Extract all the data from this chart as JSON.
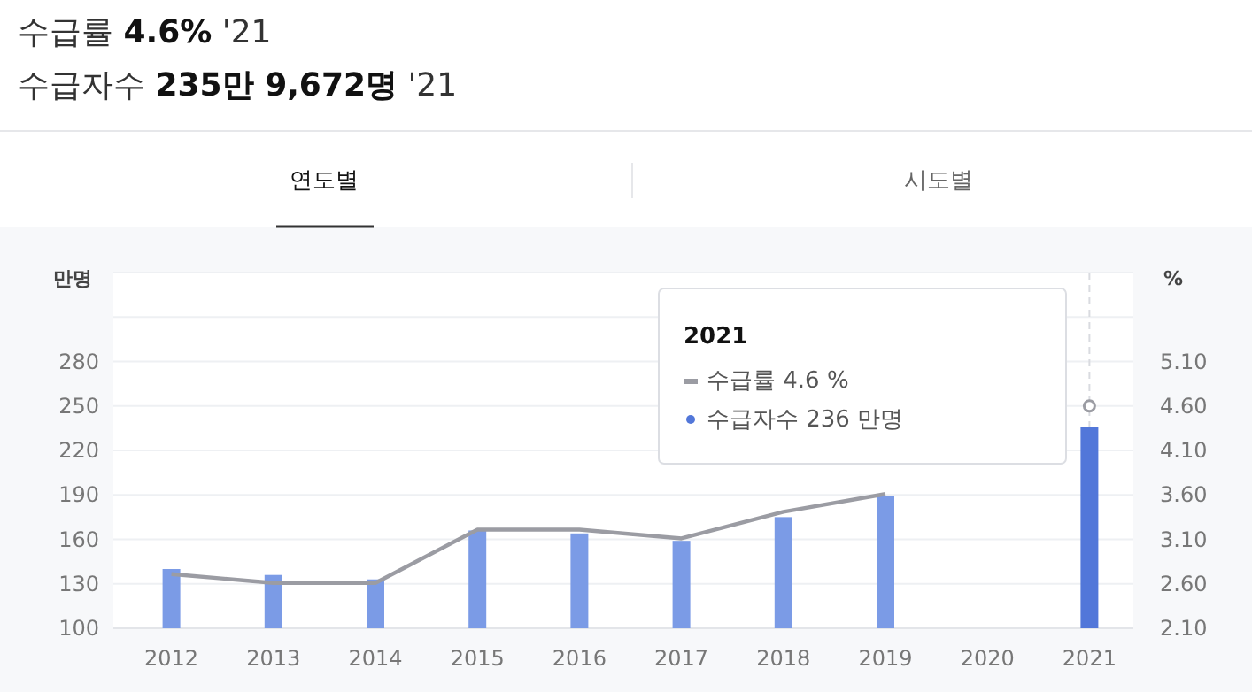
{
  "chart_data": {
    "type": "bar",
    "title": "수급률 **4.6%** '21",
    "subtitle": "수급자수 **235만 9,672명** '21",
    "categories": [
      "2012",
      "2013",
      "2014",
      "2015",
      "2016",
      "2017",
      "2018",
      "2019",
      "2020",
      "2021"
    ],
    "series": [
      {
        "color": "#5277d9",
        "colors": [
          "#7b9be6",
          "#7b9be6",
          "#7b9be6",
          "#7b9be6",
          "#7b9be6",
          "#7b9be6",
          "#7b9be6",
          "#7b9be6",
          "#7b9be6",
          "#5277d9"
        ],
        "values": [
          140,
          136,
          133,
          166,
          164,
          159,
          175,
          189,
          null,
          236
        ]
      },
      {
        "type": "line",
        "axis": "y2",
        "color": "#9b9ca3",
        "values": [
          2.71,
          2.61,
          2.61,
          3.21,
          3.21,
          3.11,
          3.41,
          3.61,
          null,
          4.6
        ]
      }
    ],
    "ylabel": "만명",
    "y2label": "%",
    "ylim": [
      100,
      340
    ],
    "yticks": [
      100,
      130,
      160,
      190,
      220,
      250,
      280,
      {
        "value": 310,
        "label": null
      },
      {
        "value": 340,
        "label": null
      }
    ],
    "y2lim": [
      2.1,
      6.1
    ],
    "y2ticks": [
      {
        "value": 2.1,
        "label": "2.10"
      },
      {
        "value": 2.6,
        "label": "2.60"
      },
      {
        "value": 3.1,
        "label": "3.10"
      },
      {
        "value": 3.6,
        "label": "3.60"
      },
      {
        "value": 4.1,
        "label": "4.10"
      },
      {
        "value": 4.6,
        "label": "4.60"
      },
      {
        "value": 5.1,
        "label": "5.10"
      },
      {
        "value": 5.6,
        "label": null
      },
      {
        "value": 6.1,
        "label": null
      }
    ],
    "grid": "y",
    "marker": "none",
    "line_style": "solid",
    "ref_lines": [
      {
        "axis": "x",
        "value": "2021",
        "color": "#d9dbe0",
        "line_style": "dashed"
      }
    ],
    "annotations": [
      "연도별",
      "시도별",
      "2021",
      "수급률 4.6 %",
      "수급자수 236 만명"
    ]
  }
}
